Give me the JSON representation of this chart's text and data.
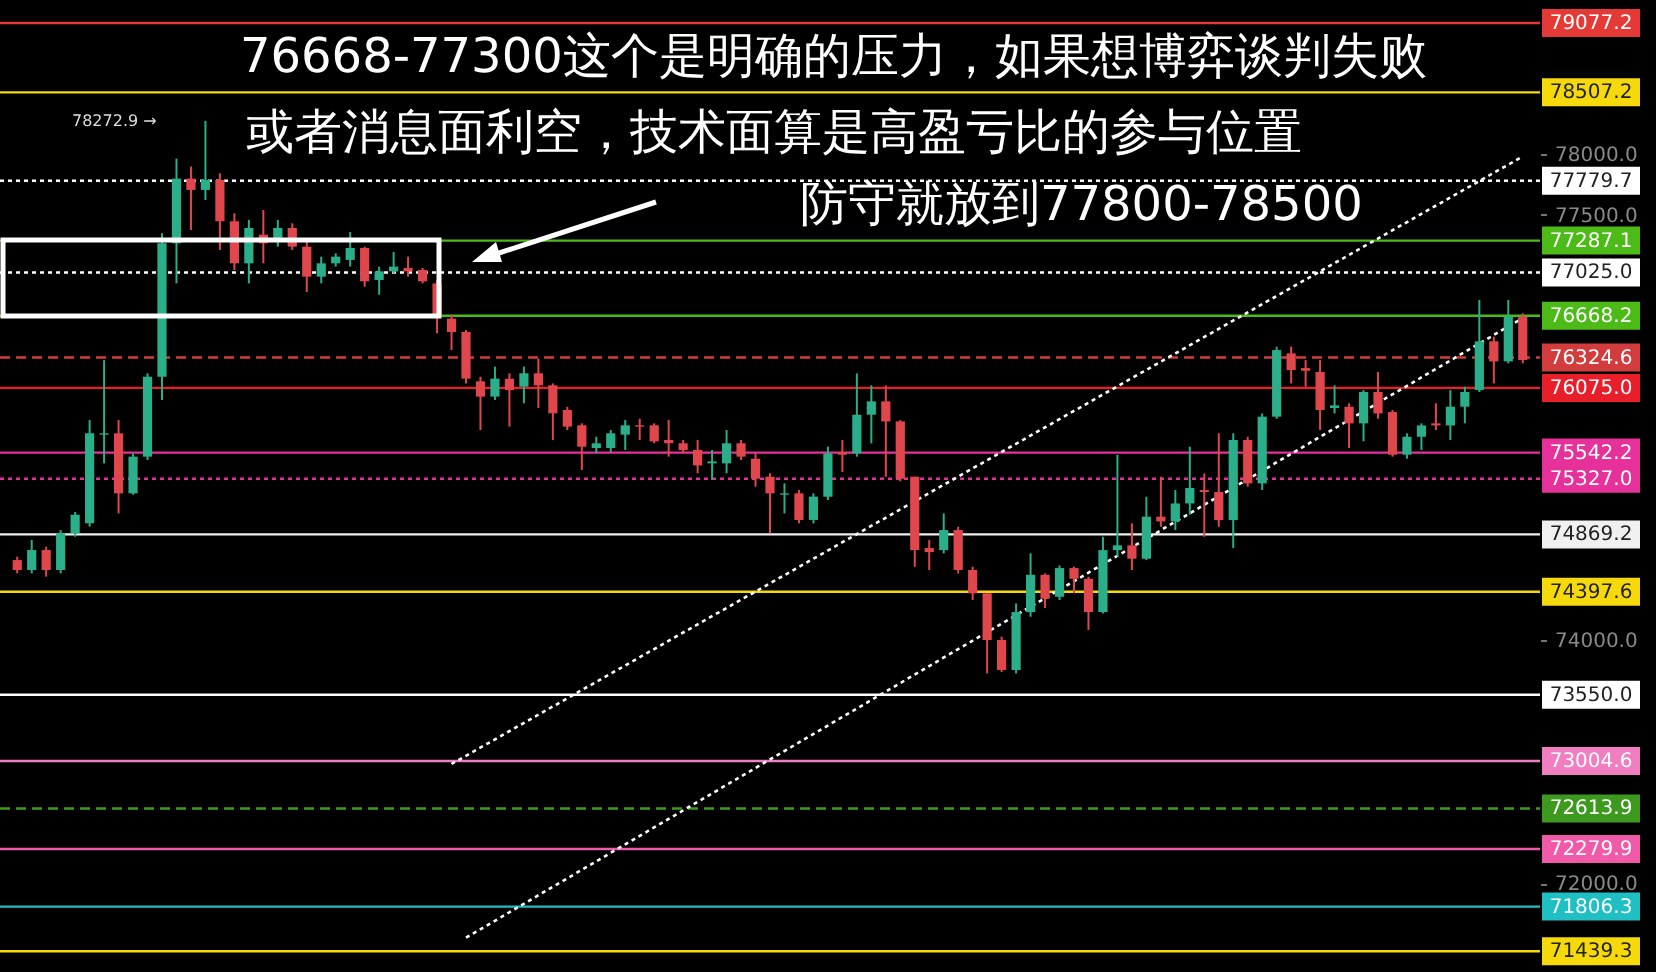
{
  "chart_data": {
    "type": "candlestick",
    "categories": [
      null,
      null,
      null,
      null,
      null,
      null,
      null,
      null,
      null,
      null,
      null,
      null,
      null,
      null,
      null,
      null,
      null,
      null,
      null,
      null,
      null,
      null,
      null,
      null,
      null,
      null,
      null,
      null,
      null,
      null,
      null,
      null,
      null,
      null,
      null,
      null,
      null,
      null,
      null,
      null,
      null,
      null,
      null,
      null,
      null,
      null,
      null,
      null,
      null,
      null,
      null,
      null,
      null,
      null,
      null,
      null,
      null,
      null,
      null,
      null,
      null,
      null,
      null,
      null,
      null,
      null,
      null,
      null,
      null,
      null,
      null,
      null,
      null,
      null,
      null,
      null,
      null,
      null,
      null,
      null,
      null,
      null,
      null,
      null,
      null,
      null,
      null,
      null,
      null,
      null,
      null,
      null,
      null,
      null,
      null,
      null,
      null,
      null,
      null,
      null,
      null,
      null,
      null,
      null,
      null
    ],
    "ohlc": [
      [
        74658,
        74686,
        74549,
        74576
      ],
      [
        74576,
        74823,
        74549,
        74741
      ],
      [
        74741,
        74768,
        74521,
        74576
      ],
      [
        74576,
        74905,
        74549,
        74878
      ],
      [
        74878,
        75053,
        74850,
        75031
      ],
      [
        74960,
        75811,
        74933,
        75701
      ],
      [
        75690,
        76304,
        75454,
        75701
      ],
      [
        75701,
        75811,
        75042,
        75207
      ],
      [
        75207,
        75536,
        75196,
        75509
      ],
      [
        75509,
        76195,
        75481,
        76167
      ],
      [
        76167,
        77347,
        75975,
        77265
      ],
      [
        77265,
        77962,
        76935,
        77797
      ],
      [
        77797,
        77896,
        77374,
        77704
      ],
      [
        77704,
        78272.9,
        77621,
        77786
      ],
      [
        77786,
        77841,
        77210,
        77446
      ],
      [
        77446,
        77512,
        77045,
        77100
      ],
      [
        77100,
        77457,
        76935,
        77391
      ],
      [
        77336,
        77539,
        77100,
        77265
      ],
      [
        77292,
        77457,
        77237,
        77391
      ],
      [
        77391,
        77429,
        77210,
        77237
      ],
      [
        77237,
        77292,
        76864,
        76990
      ],
      [
        76990,
        77155,
        76935,
        77100
      ],
      [
        77100,
        77182,
        77073,
        77155
      ],
      [
        77128,
        77358,
        77073,
        77226
      ],
      [
        77226,
        77237,
        76908,
        76952
      ],
      [
        76963,
        77073,
        76842,
        77034
      ],
      [
        77034,
        77193,
        77018,
        77073
      ],
      [
        77062,
        77155,
        76990,
        77034
      ],
      [
        77045,
        77062,
        76935,
        76952
      ],
      [
        76935,
        76963,
        76524,
        76678
      ],
      [
        76645,
        76678,
        76387,
        76535
      ],
      [
        76535,
        76551,
        76112,
        76151
      ],
      [
        76129,
        76167,
        75728,
        76003
      ],
      [
        76003,
        76250,
        75975,
        76151
      ],
      [
        76151,
        76195,
        75756,
        76058
      ],
      [
        76085,
        76250,
        75948,
        76195
      ],
      [
        76195,
        76315,
        75909,
        76096
      ],
      [
        76096,
        76112,
        75646,
        75866
      ],
      [
        75893,
        75920,
        75728,
        75756
      ],
      [
        75767,
        75783,
        75399,
        75591
      ],
      [
        75580,
        75673,
        75536,
        75619
      ],
      [
        75580,
        75728,
        75547,
        75701
      ],
      [
        75690,
        75811,
        75564,
        75767
      ],
      [
        75767,
        75822,
        75646,
        75756
      ],
      [
        75767,
        75783,
        75619,
        75635
      ],
      [
        75646,
        75811,
        75509,
        75619
      ],
      [
        75619,
        75646,
        75536,
        75564
      ],
      [
        75564,
        75646,
        75372,
        75437
      ],
      [
        75454,
        75564,
        75317,
        75470
      ],
      [
        75454,
        75728,
        75372,
        75619
      ],
      [
        75619,
        75646,
        75481,
        75509
      ],
      [
        75492,
        75536,
        75262,
        75328
      ],
      [
        75344,
        75372,
        74878,
        75207
      ],
      [
        75196,
        75289,
        75042,
        75207
      ],
      [
        75207,
        75235,
        74960,
        74988
      ],
      [
        74988,
        75207,
        74960,
        75180
      ],
      [
        75179,
        75591,
        75152,
        75536
      ],
      [
        75547,
        75646,
        75382,
        75525
      ],
      [
        75536,
        76194,
        75509,
        75854
      ],
      [
        75854,
        76096,
        75618,
        75964
      ],
      [
        75964,
        76096,
        75344,
        75799
      ],
      [
        75799,
        75810,
        75306,
        75327
      ],
      [
        75344,
        75344,
        74603,
        74740
      ],
      [
        74757,
        74823,
        74576,
        74724
      ],
      [
        74740,
        75042,
        74713,
        74905
      ],
      [
        74905,
        74932,
        74548,
        74576
      ],
      [
        74576,
        74603,
        74329,
        74384
      ],
      [
        74384,
        74384,
        73725,
        74000
      ],
      [
        74000,
        74027,
        73736,
        73753
      ],
      [
        73753,
        74301,
        73725,
        74230
      ],
      [
        74230,
        74713,
        74192,
        74537
      ],
      [
        74537,
        74548,
        74263,
        74340
      ],
      [
        74356,
        74614,
        74329,
        74592
      ],
      [
        74592,
        74603,
        74384,
        74504
      ],
      [
        74504,
        74521,
        74082,
        74230
      ],
      [
        74230,
        74850,
        74219,
        74740
      ],
      [
        74740,
        75525,
        74685,
        74779
      ],
      [
        74779,
        74960,
        74576,
        74669
      ],
      [
        74669,
        75179,
        74658,
        75015
      ],
      [
        75015,
        75344,
        74932,
        74976
      ],
      [
        74976,
        75234,
        74905,
        75124
      ],
      [
        75124,
        75591,
        75031,
        75251
      ],
      [
        75234,
        75371,
        74850,
        75218
      ],
      [
        75218,
        75701,
        74932,
        74987
      ],
      [
        74987,
        75701,
        74757,
        75646
      ],
      [
        75646,
        75673,
        75262,
        75289
      ],
      [
        75289,
        75865,
        75234,
        75838
      ],
      [
        75838,
        76414,
        75821,
        76386
      ],
      [
        76359,
        76414,
        76112,
        76222
      ],
      [
        76238,
        76304,
        76085,
        76216
      ],
      [
        76205,
        76304,
        75728,
        75893
      ],
      [
        75909,
        76096,
        75865,
        75931
      ],
      [
        75920,
        75948,
        75580,
        75783
      ],
      [
        75783,
        76057,
        75635,
        76041
      ],
      [
        76041,
        76205,
        75821,
        75865
      ],
      [
        75876,
        75893,
        75509,
        75525
      ],
      [
        75525,
        75701,
        75492,
        75673
      ],
      [
        75673,
        75783,
        75563,
        75766
      ],
      [
        75783,
        75948,
        75728,
        75766
      ],
      [
        75766,
        76057,
        75646,
        75920
      ],
      [
        75920,
        76085,
        75783,
        76041
      ],
      [
        76057,
        76798,
        76041,
        76458
      ],
      [
        76458,
        76496,
        76112,
        76293
      ],
      [
        76293,
        76798,
        76277,
        76661
      ],
      [
        76661,
        76688,
        76277,
        76304
      ]
    ],
    "series": [
      {
        "type": "line",
        "values": [
          null,
          null,
          null,
          null,
          null,
          null,
          null,
          null,
          null,
          null,
          null,
          null,
          null,
          null,
          null,
          null,
          null,
          null,
          null,
          null,
          null,
          null,
          null,
          null,
          null,
          null,
          null,
          null,
          null,
          null,
          72980,
          null,
          null,
          null,
          null,
          null,
          null,
          null,
          null,
          null,
          null,
          null,
          null,
          null,
          null,
          null,
          null,
          null,
          null,
          null,
          null,
          null,
          null,
          null,
          null,
          null,
          null,
          null,
          null,
          null,
          null,
          null,
          null,
          null,
          null,
          null,
          null,
          null,
          null,
          null,
          null,
          null,
          null,
          null,
          null,
          null,
          null,
          null,
          null,
          null,
          null,
          null,
          null,
          null,
          null,
          null,
          null,
          null,
          null,
          null,
          null,
          null,
          null,
          null,
          null,
          null,
          null,
          null,
          null,
          null,
          null,
          null,
          null,
          null,
          77980
        ],
        "color": "#ffffff",
        "line_style": "dotted"
      },
      {
        "type": "line",
        "values": [
          null,
          null,
          null,
          null,
          null,
          null,
          null,
          null,
          null,
          null,
          null,
          null,
          null,
          null,
          null,
          null,
          null,
          null,
          null,
          null,
          null,
          null,
          null,
          null,
          null,
          null,
          null,
          null,
          null,
          null,
          null,
          71550,
          null,
          null,
          null,
          null,
          null,
          null,
          null,
          null,
          null,
          null,
          null,
          null,
          null,
          null,
          null,
          null,
          null,
          null,
          null,
          null,
          null,
          null,
          null,
          null,
          null,
          null,
          null,
          null,
          null,
          null,
          null,
          null,
          null,
          null,
          null,
          null,
          null,
          null,
          null,
          null,
          null,
          null,
          null,
          null,
          null,
          null,
          null,
          null,
          null,
          null,
          null,
          null,
          null,
          null,
          null,
          null,
          null,
          null,
          null,
          null,
          null,
          null,
          null,
          null,
          null,
          null,
          null,
          null,
          null,
          null,
          null,
          null,
          76650
        ],
        "color": "#ffffff",
        "line_style": "dotted"
      }
    ],
    "ylim": [
      71268,
      79267
    ],
    "yticks": [
      {
        "value": 72000,
        "label": "72000.0"
      },
      {
        "value": 74000,
        "label": "74000.0"
      },
      {
        "value": 77500,
        "label": "77500.0"
      },
      {
        "value": 78000,
        "label": "78000.0"
      }
    ],
    "tick_labels": "y",
    "ref_lines": [
      {
        "axis": "y",
        "value": 79077.2,
        "label": "79077.2",
        "color": "#e53935",
        "line_style": "solid"
      },
      {
        "axis": "y",
        "value": 78507.2,
        "label": "78507.2",
        "color": "#f5d90a",
        "line_style": "solid"
      },
      {
        "axis": "y",
        "value": 77779.7,
        "label": "77779.7",
        "color": "#ffffff",
        "line_style": "dotted"
      },
      {
        "axis": "y",
        "value": 77287.1,
        "label": "77287.1",
        "color": "#4cbb17",
        "line_style": "solid"
      },
      {
        "axis": "y",
        "value": 77025.0,
        "label": "77025.0",
        "color": "#ffffff",
        "line_style": "dotted"
      },
      {
        "axis": "y",
        "value": 76668.2,
        "label": "76668.2",
        "color": "#4cbb17",
        "line_style": "solid"
      },
      {
        "axis": "y",
        "value": 76324.6,
        "label": "76324.6",
        "color": "#d23c3c",
        "line_style": "dashed"
      },
      {
        "axis": "y",
        "value": 76075.0,
        "label": "76075.0",
        "color": "#e81e2a",
        "line_style": "solid"
      },
      {
        "axis": "y",
        "value": 75542.2,
        "label": "75542.2",
        "color": "#e6309a",
        "line_style": "solid"
      },
      {
        "axis": "y",
        "value": 75327.0,
        "label": "75327.0",
        "color": "#e6309a",
        "line_style": "dotted"
      },
      {
        "axis": "y",
        "value": 74869.2,
        "label": "74869.2",
        "color": "#f0f0f0",
        "line_style": "solid"
      },
      {
        "axis": "y",
        "value": 74397.6,
        "label": "74397.6",
        "color": "#f5d90a",
        "line_style": "solid"
      },
      {
        "axis": "y",
        "value": 73550.0,
        "label": "73550.0",
        "color": "#ffffff",
        "line_style": "solid"
      },
      {
        "axis": "y",
        "value": 73004.6,
        "label": "73004.6",
        "color": "#f27ec2",
        "line_style": "solid"
      },
      {
        "axis": "y",
        "value": 72613.9,
        "label": "72613.9",
        "color": "#3d9a1e",
        "line_style": "dashed"
      },
      {
        "axis": "y",
        "value": 72279.9,
        "label": "72279.9",
        "color": "#f05aa8",
        "line_style": "solid"
      },
      {
        "axis": "y",
        "value": 71806.3,
        "label": "71806.3",
        "color": "#1fc0c4",
        "line_style": "solid"
      },
      {
        "axis": "y",
        "value": 71439.3,
        "label": "71439.3",
        "color": "#f5d90a",
        "line_style": "solid"
      }
    ],
    "annotations": [
      "76668-77300这个是明确的压力，如果想博弈谈判失败",
      "或者消息面利空，技术面算是高盈亏比的参与位置",
      "防守就放到77800-78500",
      "78272.9 →"
    ],
    "grid": false
  }
}
